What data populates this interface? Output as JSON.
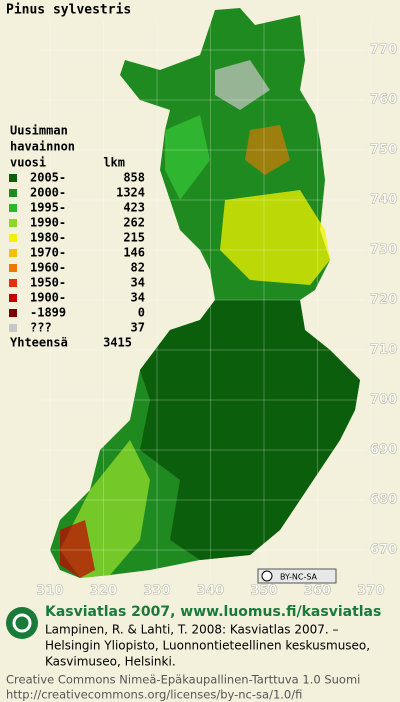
{
  "title": "Pinus sylvestris",
  "legend": {
    "heading": [
      "Uusimman",
      "havainnon",
      "vuosi"
    ],
    "count_heading": "lkm",
    "rows": [
      {
        "label": "2005-",
        "count": 858,
        "color": "#0b5e0b"
      },
      {
        "label": "2000-",
        "count": 1324,
        "color": "#1f8a1f"
      },
      {
        "label": "1995-",
        "count": 423,
        "color": "#2fb52f"
      },
      {
        "label": "1990-",
        "count": 262,
        "color": "#8ad82a"
      },
      {
        "label": "1980-",
        "count": 215,
        "color": "#f2f200"
      },
      {
        "label": "1970-",
        "count": 146,
        "color": "#f2c200"
      },
      {
        "label": "1960-",
        "count": 82,
        "color": "#f07800"
      },
      {
        "label": "1950-",
        "count": 34,
        "color": "#e03010"
      },
      {
        "label": "1900-",
        "count": 34,
        "color": "#c40000"
      },
      {
        "label": "-1899",
        "count": 0,
        "color": "#7a0000"
      },
      {
        "label": "???",
        "count": 37,
        "color": "#c8c8c8"
      }
    ],
    "total_label": "Yhteensä",
    "total": 3415
  },
  "x_ticks": [
    310,
    320,
    330,
    340,
    350,
    360,
    370
  ],
  "y_ticks": [
    670,
    680,
    690,
    700,
    710,
    720,
    730,
    740,
    750,
    760,
    770
  ],
  "badge": "BY-NC-SA",
  "footer": {
    "heading": "Kasviatlas 2007, www.luomus.fi/kasviatlas",
    "citation": [
      "Lampinen, R. & Lahti, T. 2008: Kasviatlas 2007. –",
      "Helsingin Yliopisto, Luonnontieteellinen keskusmuseo,",
      "Kasvimuseo, Helsinki."
    ],
    "license": [
      "Creative Commons Nimeä-Epäkaupallinen-Tarttuva 1.0 Suomi",
      "http://creativecommons.org/licenses/by-nc-sa/1.0/fi"
    ]
  }
}
